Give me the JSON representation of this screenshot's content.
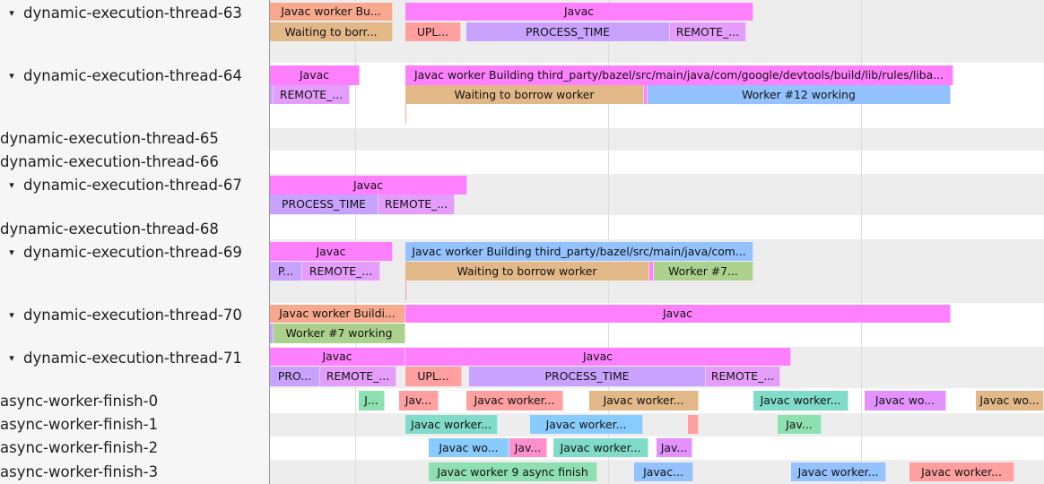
{
  "colors": {
    "javac": "#ff80ff",
    "salmon": "#f8a88c",
    "tan": "#e3b888",
    "upload": "#ff9f9f",
    "process": "#c9a2ff",
    "remote": "#e49dfb",
    "blue": "#93c2ff",
    "green": "#abd18d",
    "teal": "#80dcc9",
    "lightblue": "#88ccff",
    "mint": "#8ee0b0",
    "pinkish": "#ff8fcf",
    "violet": "#e391ff"
  },
  "tracks": [
    {
      "name": "dynamic-execution-thread-63",
      "expanded": true,
      "slices": [
        {
          "label": "Javac worker Bu...",
          "color": "salmon"
        },
        {
          "label": "Javac",
          "color": "javac"
        },
        {
          "label": "Waiting to borr...",
          "color": "tan"
        },
        {
          "label": "UPL...",
          "color": "upload"
        },
        {
          "label": "PROCESS_TIME",
          "color": "process"
        },
        {
          "label": "REMOTE_...",
          "color": "remote"
        }
      ]
    },
    {
      "name": "dynamic-execution-thread-64",
      "expanded": true,
      "slices": [
        {
          "label": "Javac",
          "color": "javac"
        },
        {
          "label": "Javac worker Building third_party/bazel/src/main/java/com/google/devtools/build/lib/rules/liba...",
          "color": "javac"
        },
        {
          "label": "",
          "color": "process"
        },
        {
          "label": "REMOTE_...",
          "color": "remote"
        },
        {
          "label": "Waiting to borrow worker",
          "color": "tan"
        },
        {
          "label": "",
          "color": "javac"
        },
        {
          "label": "Worker #12 working",
          "color": "blue"
        }
      ]
    },
    {
      "name": "dynamic-execution-thread-65",
      "expanded": false,
      "slices": []
    },
    {
      "name": "dynamic-execution-thread-66",
      "expanded": false,
      "slices": []
    },
    {
      "name": "dynamic-execution-thread-67",
      "expanded": true,
      "slices": [
        {
          "label": "Javac",
          "color": "javac"
        },
        {
          "label": "PROCESS_TIME",
          "color": "process"
        },
        {
          "label": "REMOTE_...",
          "color": "remote"
        }
      ]
    },
    {
      "name": "dynamic-execution-thread-68",
      "expanded": false,
      "slices": []
    },
    {
      "name": "dynamic-execution-thread-69",
      "expanded": true,
      "slices": [
        {
          "label": "Javac",
          "color": "javac"
        },
        {
          "label": "Javac worker Building third_party/bazel/src/main/java/com...",
          "color": "blue"
        },
        {
          "label": "P...",
          "color": "process"
        },
        {
          "label": "REMOTE_...",
          "color": "remote"
        },
        {
          "label": "Waiting to borrow worker",
          "color": "tan"
        },
        {
          "label": "",
          "color": "javac"
        },
        {
          "label": "Worker #7...",
          "color": "green"
        }
      ]
    },
    {
      "name": "dynamic-execution-thread-70",
      "expanded": true,
      "slices": [
        {
          "label": "Javac worker Buildi...",
          "color": "salmon"
        },
        {
          "label": "Javac",
          "color": "javac"
        },
        {
          "label": "",
          "color": "process"
        },
        {
          "label": "Worker #7 working",
          "color": "green"
        }
      ]
    },
    {
      "name": "dynamic-execution-thread-71",
      "expanded": true,
      "slices": [
        {
          "label": "Javac",
          "color": "javac"
        },
        {
          "label": "Javac",
          "color": "javac"
        },
        {
          "label": "PRO...",
          "color": "process"
        },
        {
          "label": "REMOTE_...",
          "color": "remote"
        },
        {
          "label": "UPL...",
          "color": "upload"
        },
        {
          "label": "PROCESS_TIME",
          "color": "process"
        },
        {
          "label": "REMOTE_...",
          "color": "remote"
        }
      ]
    },
    {
      "name": "async-worker-finish-0",
      "expanded": false,
      "slices": [
        {
          "label": "J...",
          "color": "mint"
        },
        {
          "label": "Jav...",
          "color": "upload"
        },
        {
          "label": "Javac worker...",
          "color": "upload"
        },
        {
          "label": "Javac worker...",
          "color": "tan"
        },
        {
          "label": "Javac worker...",
          "color": "teal"
        },
        {
          "label": "Javac wo...",
          "color": "violet"
        },
        {
          "label": "Javac wo...",
          "color": "tan"
        }
      ]
    },
    {
      "name": "async-worker-finish-1",
      "expanded": false,
      "slices": [
        {
          "label": "Javac worker...",
          "color": "teal"
        },
        {
          "label": "Javac worker...",
          "color": "lightblue"
        },
        {
          "label": "",
          "color": "upload"
        },
        {
          "label": "Jav...",
          "color": "mint"
        }
      ]
    },
    {
      "name": "async-worker-finish-2",
      "expanded": false,
      "slices": [
        {
          "label": "Javac wo...",
          "color": "lightblue"
        },
        {
          "label": "Jav...",
          "color": "pinkish"
        },
        {
          "label": "Javac worker...",
          "color": "teal"
        },
        {
          "label": "Jav...",
          "color": "violet"
        }
      ]
    },
    {
      "name": "async-worker-finish-3",
      "expanded": false,
      "slices": [
        {
          "label": "Javac worker 9 async finish",
          "color": "mint"
        },
        {
          "label": "Javac...",
          "color": "blue"
        },
        {
          "label": "Javac worker...",
          "color": "blue"
        },
        {
          "label": "Javac worker...",
          "color": "upload"
        }
      ]
    }
  ],
  "expand_glyph": "▾"
}
